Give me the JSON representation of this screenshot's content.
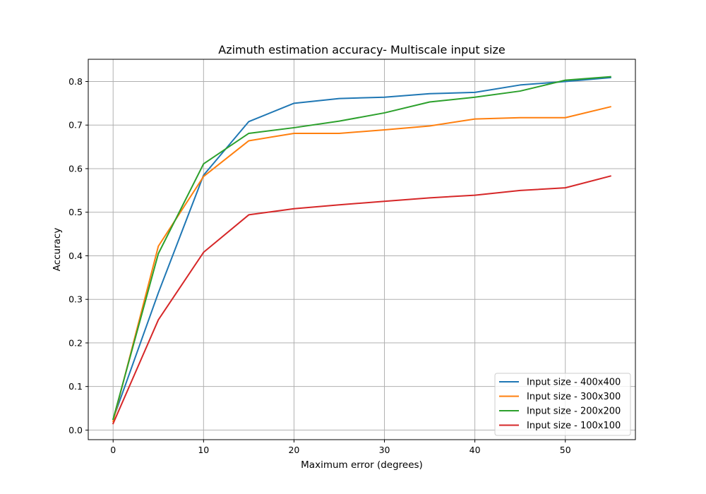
{
  "chart_data": {
    "type": "line",
    "title": "Azimuth estimation accuracy- Multiscale input size",
    "xlabel": "Maximum error (degrees)",
    "ylabel": "Accuracy",
    "xlim": [
      -2.75,
      57.75
    ],
    "ylim": [
      -0.022,
      0.851
    ],
    "x_ticks": [
      0,
      10,
      20,
      30,
      40,
      50
    ],
    "y_ticks": [
      0.0,
      0.1,
      0.2,
      0.3,
      0.4,
      0.5,
      0.6,
      0.7,
      0.8
    ],
    "grid": true,
    "legend_position": "lower-right",
    "x": [
      0,
      5,
      10,
      15,
      20,
      25,
      30,
      35,
      40,
      45,
      50,
      55
    ],
    "series": [
      {
        "name": "Input size - 400x400",
        "color": "#1f77b4",
        "values": [
          0.025,
          0.315,
          0.585,
          0.708,
          0.75,
          0.761,
          0.764,
          0.772,
          0.775,
          0.792,
          0.8,
          0.809
        ]
      },
      {
        "name": "Input size - 300x300",
        "color": "#ff7f0e",
        "values": [
          0.02,
          0.422,
          0.582,
          0.664,
          0.681,
          0.681,
          0.689,
          0.698,
          0.714,
          0.717,
          0.717,
          0.742
        ]
      },
      {
        "name": "Input size - 200x200",
        "color": "#2ca02c",
        "values": [
          0.025,
          0.405,
          0.611,
          0.681,
          0.694,
          0.709,
          0.728,
          0.753,
          0.764,
          0.778,
          0.803,
          0.811
        ]
      },
      {
        "name": "Input size - 100x100",
        "color": "#d62728",
        "values": [
          0.015,
          0.253,
          0.408,
          0.494,
          0.508,
          0.517,
          0.525,
          0.533,
          0.539,
          0.55,
          0.556,
          0.583
        ]
      }
    ]
  }
}
